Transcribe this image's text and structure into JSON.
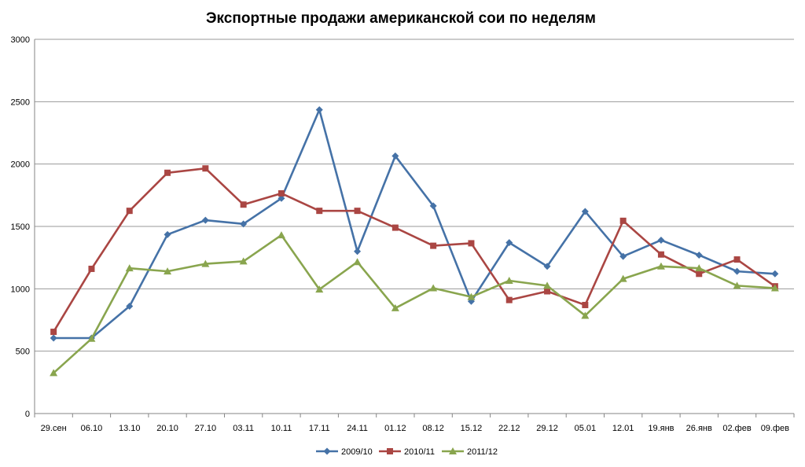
{
  "chart_data": {
    "type": "line",
    "title": "Экспортные продажи американской сои по неделям",
    "xlabel": "",
    "ylabel": "",
    "categories": [
      "29.сен",
      "06.10",
      "13.10",
      "20.10",
      "27.10",
      "03.11",
      "10.11",
      "17.11",
      "24.11",
      "01.12",
      "08.12",
      "15.12",
      "22.12",
      "29.12",
      "05.01",
      "12.01",
      "19.янв",
      "26.янв",
      "02.фев",
      "09.фев"
    ],
    "ylim": [
      0,
      3000
    ],
    "yticks": [
      0,
      500,
      1000,
      1500,
      2000,
      2500,
      3000
    ],
    "grid": true,
    "legend_position": "bottom",
    "series": [
      {
        "name": "2009/10",
        "color": "#4572A7",
        "marker": "diamond",
        "values": [
          605,
          605,
          860,
          1435,
          1550,
          1520,
          1725,
          2435,
          1300,
          2065,
          1665,
          900,
          1370,
          1180,
          1620,
          1260,
          1390,
          1270,
          1140,
          1120
        ]
      },
      {
        "name": "2010/11",
        "color": "#AA4643",
        "marker": "square",
        "values": [
          655,
          1160,
          1625,
          1930,
          1965,
          1675,
          1765,
          1625,
          1625,
          1490,
          1345,
          1365,
          910,
          980,
          870,
          1545,
          1275,
          1120,
          1235,
          1020
        ]
      },
      {
        "name": "2011/12",
        "color": "#89A54E",
        "marker": "triangle",
        "values": [
          325,
          600,
          1165,
          1140,
          1200,
          1220,
          1430,
          995,
          1215,
          845,
          1005,
          935,
          1065,
          1025,
          785,
          1080,
          1180,
          1165,
          1025,
          1005
        ]
      }
    ]
  }
}
